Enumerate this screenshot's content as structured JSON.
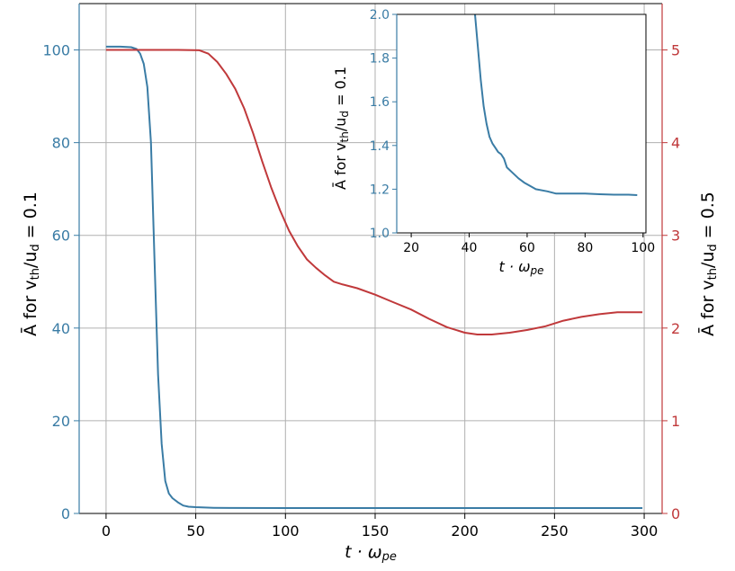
{
  "colors": {
    "blue": "#3a7ca5",
    "red": "#c0393b",
    "grid": "#b0b0b0",
    "axis": "#000000"
  },
  "chart_data": [
    {
      "id": "main",
      "type": "line",
      "xlabel": "t · ω",
      "xlabel_sub": "pe",
      "ylabel_left": "Ā for v",
      "ylabel_left_sub1": "th",
      "ylabel_left_mid": "/u",
      "ylabel_left_sub2": "d",
      "ylabel_left_tail": " = 0.1",
      "ylabel_right": "Ā for v",
      "ylabel_right_sub1": "th",
      "ylabel_right_mid": "/u",
      "ylabel_right_sub2": "d",
      "ylabel_right_tail": " = 0.5",
      "xlim": [
        -15,
        310
      ],
      "ylim_left": [
        0,
        110
      ],
      "ylim_right": [
        0,
        5.5
      ],
      "xticks": [
        0,
        50,
        100,
        150,
        200,
        250,
        300
      ],
      "yticks_left": [
        0,
        20,
        40,
        60,
        80,
        100
      ],
      "yticks_right": [
        0,
        1,
        2,
        3,
        4,
        5
      ],
      "grid": true,
      "series": [
        {
          "axis": "left",
          "color": "#3a7ca5",
          "points": [
            [
              0,
              100.7
            ],
            [
              8,
              100.7
            ],
            [
              14,
              100.6
            ],
            [
              17,
              100.2
            ],
            [
              19,
              99.2
            ],
            [
              21,
              97
            ],
            [
              23,
              92
            ],
            [
              25,
              80
            ],
            [
              27,
              55
            ],
            [
              29,
              30
            ],
            [
              31,
              15
            ],
            [
              33,
              7
            ],
            [
              35,
              4.3
            ],
            [
              37,
              3.3
            ],
            [
              40,
              2.4
            ],
            [
              43,
              1.7
            ],
            [
              46,
              1.45
            ],
            [
              50,
              1.35
            ],
            [
              55,
              1.28
            ],
            [
              60,
              1.22
            ],
            [
              70,
              1.18
            ],
            [
              100,
              1.17
            ],
            [
              150,
              1.17
            ],
            [
              200,
              1.17
            ],
            [
              250,
              1.17
            ],
            [
              299,
              1.17
            ]
          ]
        },
        {
          "axis": "right",
          "color": "#c0393b",
          "points": [
            [
              0,
              5
            ],
            [
              20,
              5
            ],
            [
              40,
              5
            ],
            [
              52,
              4.997
            ],
            [
              57,
              4.96
            ],
            [
              62,
              4.87
            ],
            [
              67,
              4.74
            ],
            [
              72,
              4.58
            ],
            [
              77,
              4.37
            ],
            [
              82,
              4.1
            ],
            [
              87,
              3.8
            ],
            [
              92,
              3.52
            ],
            [
              97,
              3.27
            ],
            [
              102,
              3.05
            ],
            [
              107,
              2.88
            ],
            [
              112,
              2.74
            ],
            [
              117,
              2.65
            ],
            [
              122,
              2.57
            ],
            [
              127,
              2.5
            ],
            [
              132,
              2.47
            ],
            [
              140,
              2.43
            ],
            [
              150,
              2.36
            ],
            [
              160,
              2.28
            ],
            [
              170,
              2.2
            ],
            [
              180,
              2.1
            ],
            [
              190,
              2.01
            ],
            [
              200,
              1.95
            ],
            [
              207,
              1.93
            ],
            [
              215,
              1.93
            ],
            [
              225,
              1.95
            ],
            [
              235,
              1.98
            ],
            [
              245,
              2.02
            ],
            [
              255,
              2.08
            ],
            [
              265,
              2.12
            ],
            [
              275,
              2.15
            ],
            [
              285,
              2.17
            ],
            [
              299,
              2.17
            ]
          ]
        }
      ]
    },
    {
      "id": "inset",
      "type": "line",
      "xlabel": "t · ω",
      "xlabel_sub": "pe",
      "ylabel": "Ā for v",
      "ylabel_sub1": "th",
      "ylabel_mid": "/u",
      "ylabel_sub2": "d",
      "ylabel_tail": " = 0.1",
      "xlim": [
        15,
        101
      ],
      "ylim": [
        1.0,
        2.0
      ],
      "xticks": [
        20,
        40,
        60,
        80,
        100
      ],
      "yticks": [
        "1.0",
        "1.2",
        "1.4",
        "1.6",
        "1.8",
        "2.0"
      ],
      "grid": false,
      "series": [
        {
          "color": "#3a7ca5",
          "points": [
            [
              42,
              2.0
            ],
            [
              43,
              1.85
            ],
            [
              44,
              1.7
            ],
            [
              45,
              1.58
            ],
            [
              46,
              1.5
            ],
            [
              47,
              1.44
            ],
            [
              48,
              1.41
            ],
            [
              49,
              1.39
            ],
            [
              50,
              1.37
            ],
            [
              51,
              1.36
            ],
            [
              52,
              1.34
            ],
            [
              53,
              1.3
            ],
            [
              55,
              1.275
            ],
            [
              57,
              1.25
            ],
            [
              59,
              1.23
            ],
            [
              61,
              1.215
            ],
            [
              63,
              1.2
            ],
            [
              67,
              1.19
            ],
            [
              70,
              1.18
            ],
            [
              75,
              1.18
            ],
            [
              80,
              1.18
            ],
            [
              85,
              1.177
            ],
            [
              90,
              1.175
            ],
            [
              95,
              1.175
            ],
            [
              98,
              1.173
            ]
          ]
        }
      ]
    }
  ]
}
